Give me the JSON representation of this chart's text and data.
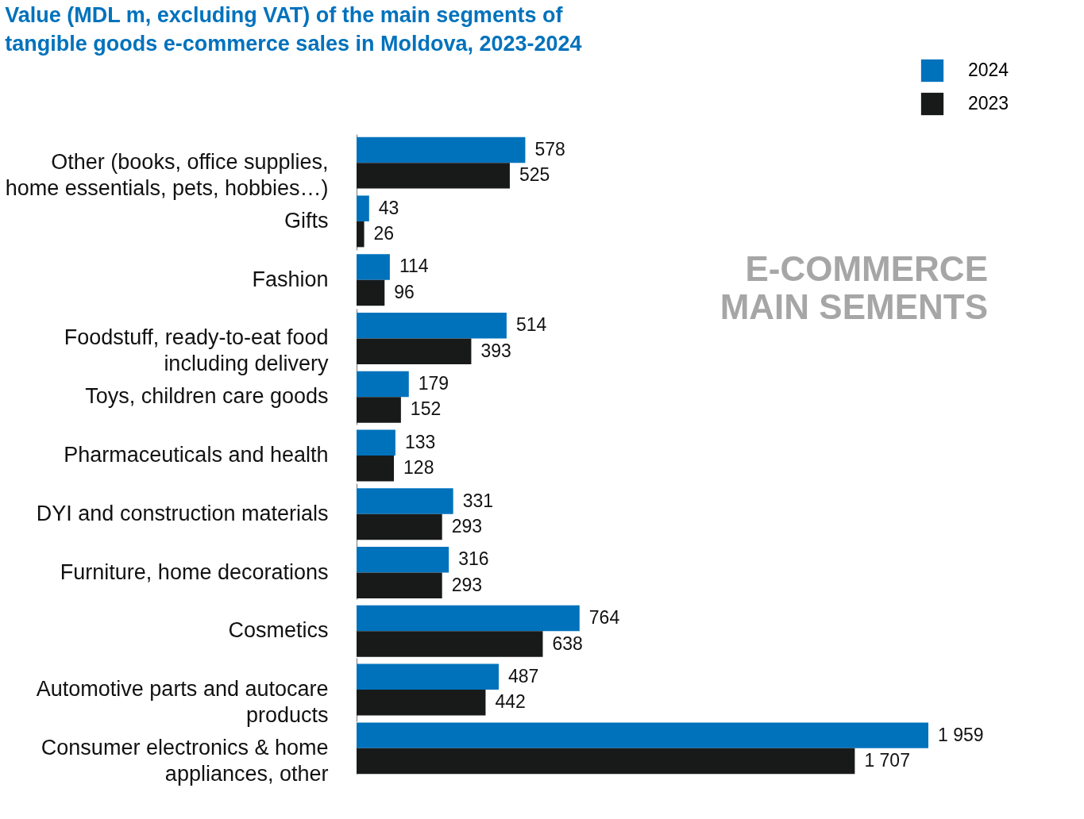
{
  "chart_data": {
    "type": "bar",
    "orientation": "horizontal",
    "title": "Value (MDL m, excluding VAT) of the main segments of tangible goods e-commerce sales in Moldova, 2023-2024",
    "categories": [
      "Other (books, office supplies, home essentials, pets, hobbies…)",
      "Gifts",
      "Fashion",
      "Foodstuff, ready-to-eat food including delivery",
      "Toys, children care goods",
      "Pharmaceuticals and health",
      "DYI and construction materials",
      "Furniture, home decorations",
      "Cosmetics",
      "Automotive parts and autocare products",
      "Consumer electronics & home appliances, other"
    ],
    "series": [
      {
        "name": "2024",
        "color": "#0072bc",
        "values": [
          578,
          43,
          114,
          514,
          179,
          133,
          331,
          316,
          764,
          487,
          1959
        ],
        "value_labels": [
          "578",
          "43",
          "114",
          "514",
          "179",
          "133",
          "331",
          "316",
          "764",
          "487",
          "1 959"
        ]
      },
      {
        "name": "2023",
        "color": "#181a1a",
        "values": [
          525,
          26,
          96,
          393,
          152,
          128,
          293,
          293,
          638,
          442,
          1707
        ],
        "value_labels": [
          "525",
          "26",
          "96",
          "393",
          "152",
          "128",
          "293",
          "293",
          "638",
          "442",
          "1 707"
        ]
      }
    ],
    "annotations": [
      "E-COMMERCE MAIN SEMENTS"
    ],
    "legend": "top right",
    "grid": false
  }
}
